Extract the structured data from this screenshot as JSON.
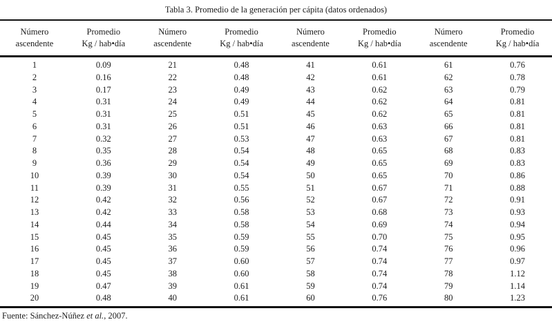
{
  "page": {
    "title": "Tabla 3. Promedio de la generación per cápita (datos ordenados)",
    "footer": {
      "prefix": "Fuente: Sánchez-Núñez ",
      "italic": "et al.",
      "suffix": ", 2007."
    }
  },
  "colors": {
    "background": "#ffffff",
    "text": "#1c1c1c",
    "rule": "#111111"
  },
  "table": {
    "headers": [
      {
        "top": "Número",
        "bottom": "ascendente"
      },
      {
        "top": "Promedio",
        "bottom": "Kg / hab•día"
      },
      {
        "top": "Número",
        "bottom": "ascendente"
      },
      {
        "top": "Promedio",
        "bottom": "Kg / hab•día"
      },
      {
        "top": "Número",
        "bottom": "ascendente"
      },
      {
        "top": "Promedio",
        "bottom": "Kg / hab•día"
      },
      {
        "top": "Número",
        "bottom": "ascendente"
      },
      {
        "top": "Promedio",
        "bottom": "Kg / hab•día"
      }
    ],
    "groups": [
      {
        "numbers": [
          1,
          2,
          3,
          4,
          5,
          6,
          7,
          8,
          9,
          10,
          11,
          12,
          13,
          14,
          15,
          16,
          17,
          18,
          19,
          20
        ],
        "values": [
          "0.09",
          "0.16",
          "0.17",
          "0.31",
          "0.31",
          "0.31",
          "0.32",
          "0.35",
          "0.36",
          "0.39",
          "0.39",
          "0.42",
          "0.42",
          "0.44",
          "0.45",
          "0.45",
          "0.45",
          "0.45",
          "0.47",
          "0.48"
        ]
      },
      {
        "numbers": [
          21,
          22,
          23,
          24,
          25,
          26,
          27,
          28,
          29,
          30,
          31,
          32,
          33,
          34,
          35,
          36,
          37,
          38,
          39,
          40
        ],
        "values": [
          "0.48",
          "0.48",
          "0.49",
          "0.49",
          "0.51",
          "0.51",
          "0.53",
          "0.54",
          "0.54",
          "0.54",
          "0.55",
          "0.56",
          "0.58",
          "0.58",
          "0.59",
          "0.59",
          "0.60",
          "0.60",
          "0.61",
          "0.61"
        ]
      },
      {
        "numbers": [
          41,
          42,
          43,
          44,
          45,
          46,
          47,
          48,
          49,
          50,
          51,
          52,
          53,
          54,
          55,
          56,
          57,
          58,
          59,
          60
        ],
        "values": [
          "0.61",
          "0.61",
          "0.62",
          "0.62",
          "0.62",
          "0.63",
          "0.63",
          "0.65",
          "0.65",
          "0.65",
          "0.67",
          "0.67",
          "0.68",
          "0.69",
          "0.70",
          "0.74",
          "0.74",
          "0.74",
          "0.74",
          "0.76"
        ]
      },
      {
        "numbers": [
          61,
          62,
          63,
          64,
          65,
          66,
          67,
          68,
          69,
          70,
          71,
          72,
          73,
          74,
          75,
          76,
          77,
          78,
          79,
          80
        ],
        "values": [
          "0.76",
          "0.78",
          "0.79",
          "0.81",
          "0.81",
          "0.81",
          "0.81",
          "0.83",
          "0.83",
          "0.86",
          "0.88",
          "0.91",
          "0.93",
          "0.94",
          "0.95",
          "0.96",
          "0.97",
          "1.12",
          "1.14",
          "1.23"
        ]
      }
    ]
  }
}
